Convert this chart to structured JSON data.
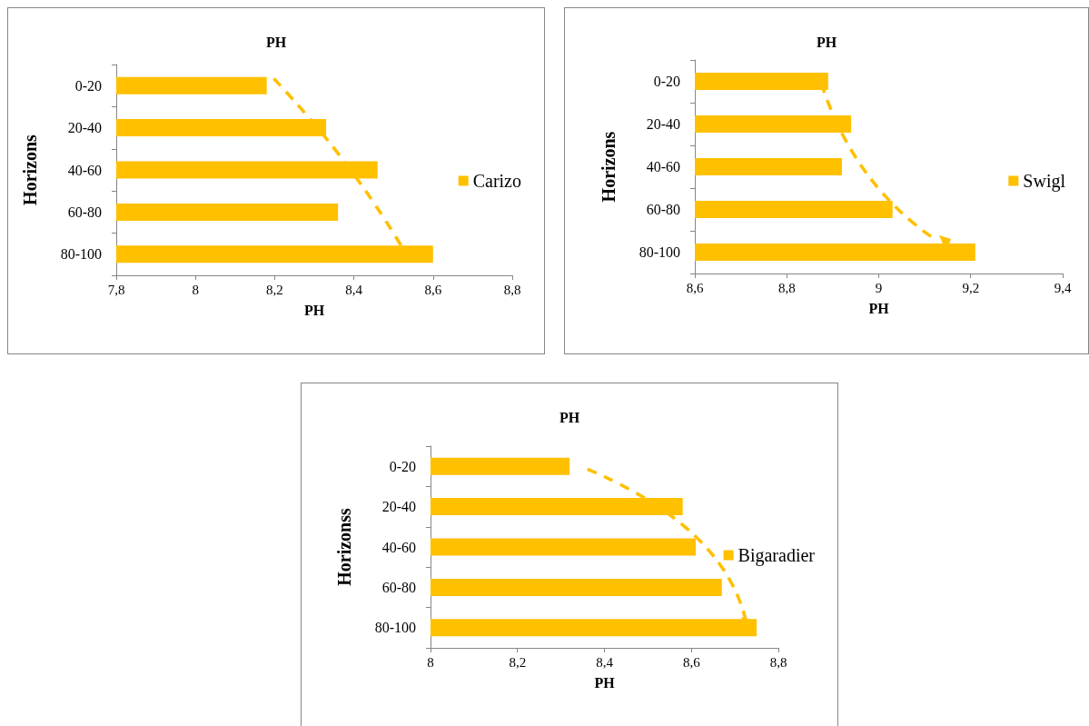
{
  "chart_data": [
    {
      "type": "bar",
      "orientation": "horizontal",
      "title": "PH",
      "xlabel": "PH",
      "ylabel": "Horizons",
      "categories": [
        "0-20",
        "20-40",
        "40-60",
        "60-80",
        "80-100"
      ],
      "series": [
        {
          "name": "Carizo",
          "color": "#ffc000",
          "values": [
            8.18,
            8.33,
            8.46,
            8.36,
            8.6
          ]
        }
      ],
      "xlim": [
        7.8,
        8.8
      ],
      "xticks": [
        {
          "value": 7.8,
          "label": "7,8"
        },
        {
          "value": 8,
          "label": "8"
        },
        {
          "value": 8.2,
          "label": "8,2"
        },
        {
          "value": 8.4,
          "label": "8,4"
        },
        {
          "value": 8.6,
          "label": "8,6"
        },
        {
          "value": 8.8,
          "label": "8,8"
        }
      ],
      "grid": false,
      "legend": "right"
    },
    {
      "type": "bar",
      "orientation": "horizontal",
      "title": "PH",
      "xlabel": "PH",
      "ylabel": "Horizons",
      "categories": [
        "0-20",
        "20-40",
        "40-60",
        "60-80",
        "80-100"
      ],
      "series": [
        {
          "name": "Swigl",
          "color": "#ffc000",
          "values": [
            8.89,
            8.94,
            8.92,
            9.03,
            9.21
          ]
        }
      ],
      "xlim": [
        8.6,
        9.4
      ],
      "xticks": [
        {
          "value": 8.6,
          "label": "8,6"
        },
        {
          "value": 8.8,
          "label": "8,8"
        },
        {
          "value": 9,
          "label": "9"
        },
        {
          "value": 9.2,
          "label": "9,2"
        },
        {
          "value": 9.4,
          "label": "9,4"
        }
      ],
      "grid": false,
      "legend": "right"
    },
    {
      "type": "bar",
      "orientation": "horizontal",
      "title": "PH",
      "xlabel": "PH",
      "ylabel": "Horizonss",
      "categories": [
        "0-20",
        "20-40",
        "40-60",
        "60-80",
        "80-100"
      ],
      "series": [
        {
          "name": "Bigaradier",
          "color": "#ffc000",
          "values": [
            8.32,
            8.58,
            8.61,
            8.67,
            8.75
          ]
        }
      ],
      "xlim": [
        8,
        8.8
      ],
      "xticks": [
        {
          "value": 8,
          "label": "8"
        },
        {
          "value": 8.2,
          "label": "8,2"
        },
        {
          "value": 8.4,
          "label": "8,4"
        },
        {
          "value": 8.6,
          "label": "8,6"
        },
        {
          "value": 8.8,
          "label": "8,8"
        }
      ],
      "grid": false,
      "legend": "right"
    }
  ]
}
